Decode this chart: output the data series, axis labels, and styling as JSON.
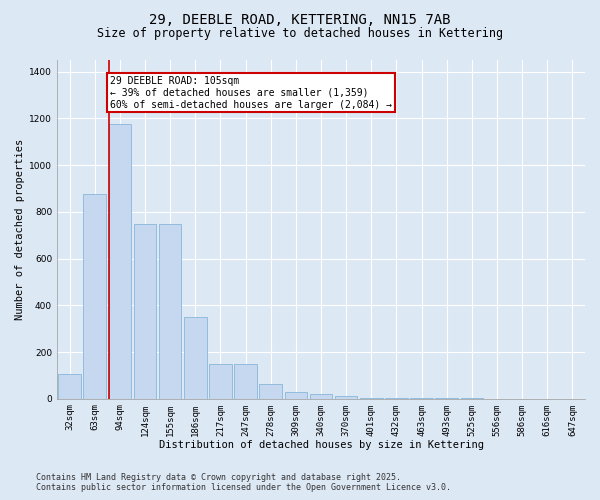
{
  "title": "29, DEEBLE ROAD, KETTERING, NN15 7AB",
  "subtitle": "Size of property relative to detached houses in Kettering",
  "xlabel": "Distribution of detached houses by size in Kettering",
  "ylabel": "Number of detached properties",
  "categories": [
    "32sqm",
    "63sqm",
    "94sqm",
    "124sqm",
    "155sqm",
    "186sqm",
    "217sqm",
    "247sqm",
    "278sqm",
    "309sqm",
    "340sqm",
    "370sqm",
    "401sqm",
    "432sqm",
    "463sqm",
    "493sqm",
    "525sqm",
    "556sqm",
    "586sqm",
    "616sqm",
    "647sqm"
  ],
  "values": [
    105,
    875,
    1175,
    750,
    750,
    350,
    150,
    150,
    65,
    30,
    20,
    10,
    5,
    3,
    2,
    1,
    1,
    0,
    0,
    0,
    0
  ],
  "bar_color": "#c5d8f0",
  "bar_edge_color": "#7aadd4",
  "vline_x_index": 2,
  "vline_color": "#cc0000",
  "annotation_text": "29 DEEBLE ROAD: 105sqm\n← 39% of detached houses are smaller (1,359)\n60% of semi-detached houses are larger (2,084) →",
  "annotation_box_edgecolor": "#cc0000",
  "annotation_bg": "#ffffff",
  "ylim": [
    0,
    1450
  ],
  "yticks": [
    0,
    200,
    400,
    600,
    800,
    1000,
    1200,
    1400
  ],
  "bg_color": "#dde8f5",
  "plot_bg": "#dde8f5",
  "grid_color": "#ffffff",
  "footer_line1": "Contains HM Land Registry data © Crown copyright and database right 2025.",
  "footer_line2": "Contains public sector information licensed under the Open Government Licence v3.0.",
  "title_fontsize": 10,
  "subtitle_fontsize": 8.5,
  "xlabel_fontsize": 7.5,
  "ylabel_fontsize": 7.5,
  "tick_fontsize": 6.5,
  "annotation_fontsize": 7,
  "footer_fontsize": 6
}
